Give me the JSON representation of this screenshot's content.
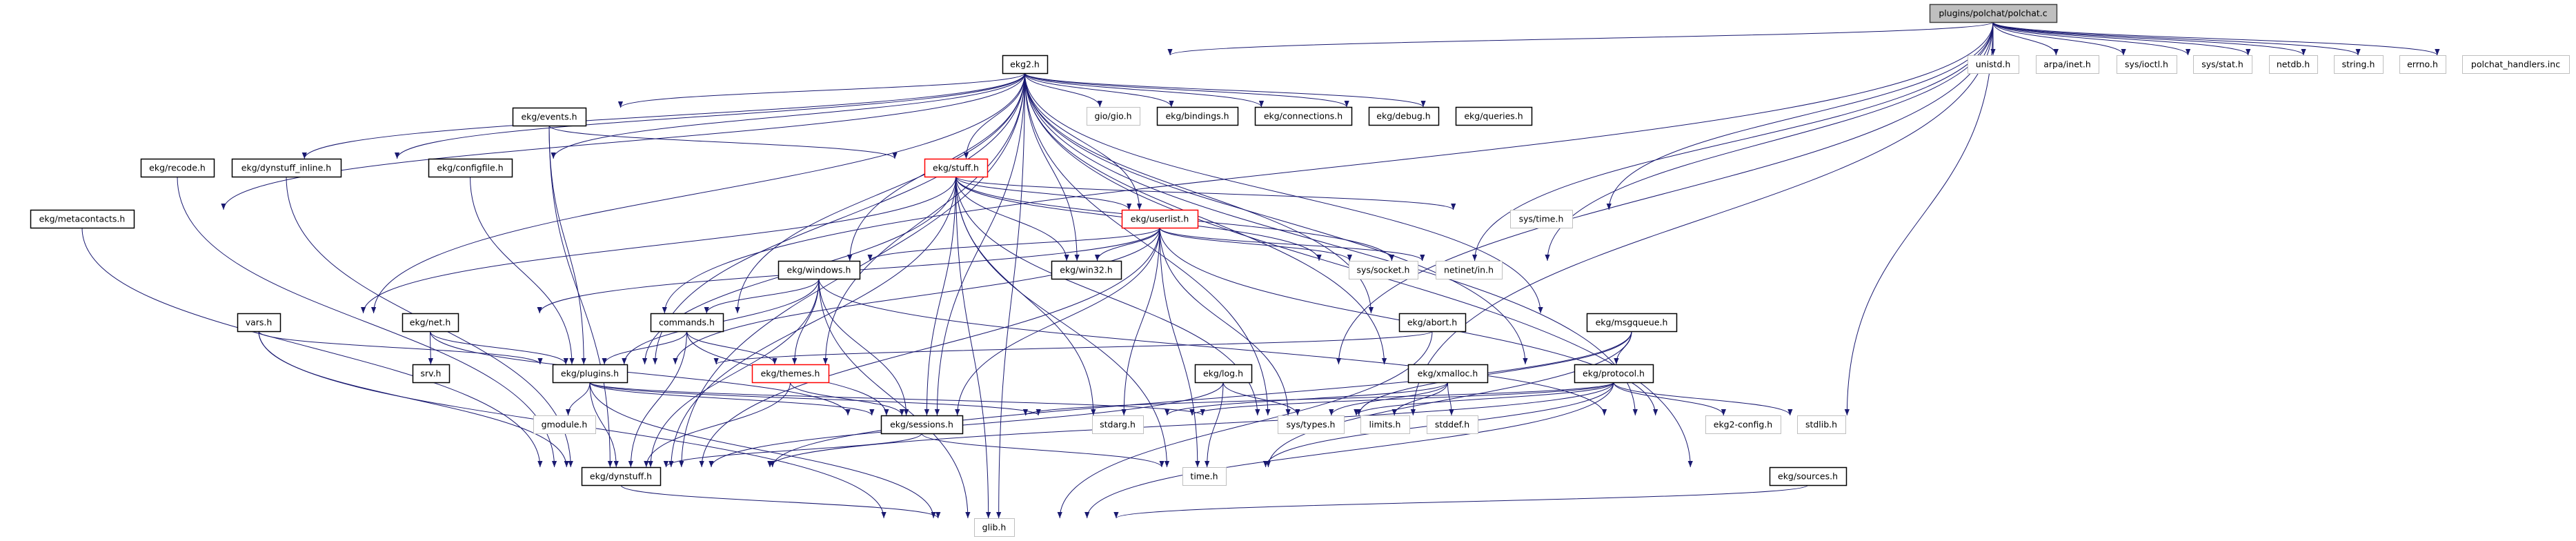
{
  "graph": {
    "type": "include-dependency-graph",
    "edge_color": "#191970",
    "node_styles": {
      "root": {
        "fill": "#bfbfbf",
        "stroke": "#404040"
      },
      "normal": {
        "fill": "#ffffff",
        "stroke": "#000000"
      },
      "red": {
        "fill": "#ffffff",
        "stroke": "#ff0000"
      },
      "gray": {
        "fill": "#ffffff",
        "stroke": "#bfbfbf"
      }
    },
    "nodes": [
      {
        "id": "polchat",
        "label": "plugins/polchat/polchat.c",
        "style": "root"
      },
      {
        "id": "ekg2",
        "label": "ekg2.h",
        "style": "normal"
      },
      {
        "id": "unistd",
        "label": "unistd.h",
        "style": "gray"
      },
      {
        "id": "arpa",
        "label": "arpa/inet.h",
        "style": "gray"
      },
      {
        "id": "ioctl",
        "label": "sys/ioctl.h",
        "style": "gray"
      },
      {
        "id": "stat",
        "label": "sys/stat.h",
        "style": "gray"
      },
      {
        "id": "netdb",
        "label": "netdb.h",
        "style": "gray"
      },
      {
        "id": "string",
        "label": "string.h",
        "style": "gray"
      },
      {
        "id": "errno",
        "label": "errno.h",
        "style": "gray"
      },
      {
        "id": "handlers",
        "label": "polchat_handlers.inc",
        "style": "gray"
      },
      {
        "id": "events",
        "label": "ekg/events.h",
        "style": "normal"
      },
      {
        "id": "gio",
        "label": "gio/gio.h",
        "style": "gray"
      },
      {
        "id": "bindings",
        "label": "ekg/bindings.h",
        "style": "normal"
      },
      {
        "id": "connections",
        "label": "ekg/connections.h",
        "style": "normal"
      },
      {
        "id": "debug",
        "label": "ekg/debug.h",
        "style": "normal"
      },
      {
        "id": "queries",
        "label": "ekg/queries.h",
        "style": "normal"
      },
      {
        "id": "recode",
        "label": "ekg/recode.h",
        "style": "normal"
      },
      {
        "id": "dyninline",
        "label": "ekg/dynstuff_inline.h",
        "style": "normal"
      },
      {
        "id": "configfile",
        "label": "ekg/configfile.h",
        "style": "normal"
      },
      {
        "id": "stuff",
        "label": "ekg/stuff.h",
        "style": "red"
      },
      {
        "id": "metacontacts",
        "label": "ekg/metacontacts.h",
        "style": "normal"
      },
      {
        "id": "userlist",
        "label": "ekg/userlist.h",
        "style": "red"
      },
      {
        "id": "systime",
        "label": "sys/time.h",
        "style": "gray"
      },
      {
        "id": "windows",
        "label": "ekg/windows.h",
        "style": "normal"
      },
      {
        "id": "win32",
        "label": "ekg/win32.h",
        "style": "normal"
      },
      {
        "id": "socket",
        "label": "sys/socket.h",
        "style": "gray"
      },
      {
        "id": "netinet",
        "label": "netinet/in.h",
        "style": "gray"
      },
      {
        "id": "vars",
        "label": "vars.h",
        "style": "normal"
      },
      {
        "id": "net",
        "label": "ekg/net.h",
        "style": "normal"
      },
      {
        "id": "commands",
        "label": "commands.h",
        "style": "normal"
      },
      {
        "id": "abort",
        "label": "ekg/abort.h",
        "style": "normal"
      },
      {
        "id": "msgqueue",
        "label": "ekg/msgqueue.h",
        "style": "normal"
      },
      {
        "id": "srv",
        "label": "srv.h",
        "style": "normal"
      },
      {
        "id": "plugins",
        "label": "ekg/plugins.h",
        "style": "normal"
      },
      {
        "id": "themes",
        "label": "ekg/themes.h",
        "style": "red"
      },
      {
        "id": "log",
        "label": "ekg/log.h",
        "style": "normal"
      },
      {
        "id": "xmalloc",
        "label": "ekg/xmalloc.h",
        "style": "normal"
      },
      {
        "id": "protocol",
        "label": "ekg/protocol.h",
        "style": "normal"
      },
      {
        "id": "gmodule",
        "label": "gmodule.h",
        "style": "gray"
      },
      {
        "id": "sessions",
        "label": "ekg/sessions.h",
        "style": "normal"
      },
      {
        "id": "stdarg",
        "label": "stdarg.h",
        "style": "gray"
      },
      {
        "id": "systypes",
        "label": "sys/types.h",
        "style": "gray"
      },
      {
        "id": "limits",
        "label": "limits.h",
        "style": "gray"
      },
      {
        "id": "stddef",
        "label": "stddef.h",
        "style": "gray"
      },
      {
        "id": "ekg2config",
        "label": "ekg2-config.h",
        "style": "gray"
      },
      {
        "id": "stdlib",
        "label": "stdlib.h",
        "style": "gray"
      },
      {
        "id": "dynstuff",
        "label": "ekg/dynstuff.h",
        "style": "normal"
      },
      {
        "id": "time",
        "label": "time.h",
        "style": "gray"
      },
      {
        "id": "sources",
        "label": "ekg/sources.h",
        "style": "normal"
      },
      {
        "id": "glib",
        "label": "glib.h",
        "style": "gray"
      }
    ],
    "edges": [
      [
        "polchat",
        "ekg2"
      ],
      [
        "polchat",
        "net"
      ],
      [
        "polchat",
        "systime"
      ],
      [
        "polchat",
        "socket"
      ],
      [
        "polchat",
        "netinet"
      ],
      [
        "polchat",
        "log"
      ],
      [
        "polchat",
        "systypes"
      ],
      [
        "polchat",
        "stdlib"
      ],
      [
        "polchat",
        "unistd"
      ],
      [
        "polchat",
        "arpa"
      ],
      [
        "polchat",
        "ioctl"
      ],
      [
        "polchat",
        "stat"
      ],
      [
        "polchat",
        "netdb"
      ],
      [
        "polchat",
        "string"
      ],
      [
        "polchat",
        "errno"
      ],
      [
        "polchat",
        "handlers"
      ],
      [
        "ekg2",
        "events"
      ],
      [
        "ekg2",
        "recode"
      ],
      [
        "ekg2",
        "dyninline"
      ],
      [
        "ekg2",
        "configfile"
      ],
      [
        "ekg2",
        "metacontacts"
      ],
      [
        "ekg2",
        "vars"
      ],
      [
        "ekg2",
        "commands"
      ],
      [
        "ekg2",
        "windows"
      ],
      [
        "ekg2",
        "plugins"
      ],
      [
        "ekg2",
        "themes"
      ],
      [
        "ekg2",
        "dynstuff"
      ],
      [
        "ekg2",
        "gio"
      ],
      [
        "ekg2",
        "bindings"
      ],
      [
        "ekg2",
        "connections"
      ],
      [
        "ekg2",
        "debug"
      ],
      [
        "ekg2",
        "queries"
      ],
      [
        "ekg2",
        "stuff"
      ],
      [
        "ekg2",
        "userlist"
      ],
      [
        "ekg2",
        "win32"
      ],
      [
        "ekg2",
        "sessions"
      ],
      [
        "ekg2",
        "abort"
      ],
      [
        "ekg2",
        "msgqueue"
      ],
      [
        "ekg2",
        "xmalloc"
      ],
      [
        "ekg2",
        "protocol"
      ],
      [
        "ekg2",
        "ekg2config"
      ],
      [
        "ekg2",
        "sources"
      ],
      [
        "ekg2",
        "glib"
      ],
      [
        "ekg2",
        "systypes"
      ],
      [
        "events",
        "stuff"
      ],
      [
        "events",
        "plugins"
      ],
      [
        "events",
        "dynstuff"
      ],
      [
        "recode",
        "dynstuff"
      ],
      [
        "dyninline",
        "dynstuff"
      ],
      [
        "configfile",
        "plugins"
      ],
      [
        "metacontacts",
        "dynstuff"
      ],
      [
        "stuff",
        "userlist"
      ],
      [
        "stuff",
        "win32"
      ],
      [
        "stuff",
        "systime"
      ],
      [
        "stuff",
        "socket"
      ],
      [
        "stuff",
        "netinet"
      ],
      [
        "stuff",
        "vars"
      ],
      [
        "stuff",
        "plugins"
      ],
      [
        "stuff",
        "dynstuff"
      ],
      [
        "stuff",
        "sessions"
      ],
      [
        "stuff",
        "glib"
      ],
      [
        "stuff",
        "time"
      ],
      [
        "stuff",
        "stdarg"
      ],
      [
        "stuff",
        "systypes"
      ],
      [
        "userlist",
        "windows"
      ],
      [
        "userlist",
        "win32"
      ],
      [
        "userlist",
        "socket"
      ],
      [
        "userlist",
        "netinet"
      ],
      [
        "userlist",
        "plugins"
      ],
      [
        "userlist",
        "dynstuff"
      ],
      [
        "userlist",
        "sessions"
      ],
      [
        "userlist",
        "stdarg"
      ],
      [
        "userlist",
        "time"
      ],
      [
        "userlist",
        "systypes"
      ],
      [
        "userlist",
        "ekg2config"
      ],
      [
        "userlist",
        "net"
      ],
      [
        "windows",
        "commands"
      ],
      [
        "windows",
        "themes"
      ],
      [
        "windows",
        "dynstuff"
      ],
      [
        "windows",
        "sessions"
      ],
      [
        "windows",
        "glib"
      ],
      [
        "windows",
        "ekg2config"
      ],
      [
        "windows",
        "plugins"
      ],
      [
        "vars",
        "plugins"
      ],
      [
        "vars",
        "dynstuff"
      ],
      [
        "vars",
        "glib"
      ],
      [
        "net",
        "srv"
      ],
      [
        "net",
        "plugins"
      ],
      [
        "net",
        "sessions"
      ],
      [
        "commands",
        "plugins"
      ],
      [
        "commands",
        "themes"
      ],
      [
        "commands",
        "dynstuff"
      ],
      [
        "commands",
        "sessions"
      ],
      [
        "plugins",
        "gmodule"
      ],
      [
        "plugins",
        "dynstuff"
      ],
      [
        "plugins",
        "sessions"
      ],
      [
        "plugins",
        "stdarg"
      ],
      [
        "plugins",
        "systypes"
      ],
      [
        "plugins",
        "glib"
      ],
      [
        "themes",
        "sessions"
      ],
      [
        "themes",
        "dynstuff"
      ],
      [
        "abort",
        "plugins"
      ],
      [
        "abort",
        "glib"
      ],
      [
        "msgqueue",
        "protocol"
      ],
      [
        "msgqueue",
        "dynstuff"
      ],
      [
        "msgqueue",
        "systypes"
      ],
      [
        "msgqueue",
        "time"
      ],
      [
        "log",
        "dynstuff"
      ],
      [
        "log",
        "systypes"
      ],
      [
        "log",
        "time"
      ],
      [
        "xmalloc",
        "systypes"
      ],
      [
        "xmalloc",
        "limits"
      ],
      [
        "xmalloc",
        "stddef"
      ],
      [
        "xmalloc",
        "stdarg"
      ],
      [
        "protocol",
        "dynstuff"
      ],
      [
        "protocol",
        "sessions"
      ],
      [
        "protocol",
        "time"
      ],
      [
        "protocol",
        "glib"
      ],
      [
        "protocol",
        "systypes"
      ],
      [
        "protocol",
        "stdarg"
      ],
      [
        "protocol",
        "ekg2config"
      ],
      [
        "protocol",
        "stdlib"
      ],
      [
        "sessions",
        "dynstuff"
      ],
      [
        "sessions",
        "time"
      ],
      [
        "dynstuff",
        "glib"
      ],
      [
        "sources",
        "glib"
      ]
    ]
  }
}
